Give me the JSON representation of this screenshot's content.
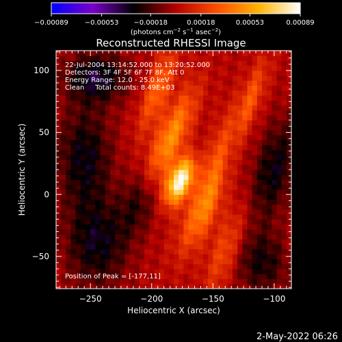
{
  "chart_data": {
    "type": "heatmap",
    "title": "Reconstructed RHESSI Image",
    "xlabel": "Heliocentric X (arcsec)",
    "ylabel": "Heliocentric Y (arcsec)",
    "xlim": [
      -278,
      -86
    ],
    "ylim": [
      -76,
      116
    ],
    "xticks": [
      -250,
      -200,
      -150,
      -100
    ],
    "yticks": [
      -50,
      0,
      50,
      100
    ],
    "colorbar": {
      "label_prefix": "(photons cm",
      "label_exp1": "−2",
      "label_mid": " s",
      "label_exp2": "−1",
      "label_mid2": " asec",
      "label_exp3": "−2",
      "label_suffix": ")",
      "range": [
        -0.00089,
        0.00089
      ],
      "ticks": [
        "-0.00089",
        "-0.00053",
        "-0.00018",
        "0.00018",
        "0.00053",
        "0.00089"
      ],
      "colormap": [
        "#0000ff",
        "#7a00c8",
        "#000000",
        "#b40000",
        "#ff5000",
        "#ffb400",
        "#ffffff"
      ]
    },
    "annotations": [
      "22-Jul-2004 13:14:52.000 to 13:20:52.000",
      "Detectors: 3F 4F 5F 6F 7F 8F, Att 0",
      "Energy Range: 12.0 - 25.0 keV",
      "Clean     Total counts: 8.49E+03"
    ],
    "peak_label": "Position of Peak = [-177,11]",
    "peak": [
      -177,
      11
    ],
    "sources": [
      {
        "x": -177,
        "y": 11,
        "sx": 7,
        "sy": 14,
        "angle": 25,
        "amp": 1.0
      },
      {
        "x": -185,
        "y": 45,
        "sx": 8,
        "sy": 30,
        "angle": 25,
        "amp": 0.55
      },
      {
        "x": -195,
        "y": 85,
        "sx": 7,
        "sy": 25,
        "angle": 20,
        "amp": 0.4
      },
      {
        "x": -160,
        "y": -15,
        "sx": 9,
        "sy": 25,
        "angle": 25,
        "amp": 0.4
      },
      {
        "x": -140,
        "y": -45,
        "sx": 8,
        "sy": 25,
        "angle": 20,
        "amp": 0.3
      },
      {
        "x": -120,
        "y": 75,
        "sx": 6,
        "sy": 25,
        "angle": 20,
        "amp": 0.35
      },
      {
        "x": -148,
        "y": 25,
        "sx": 6,
        "sy": 30,
        "angle": 15,
        "amp": 0.3
      },
      {
        "x": -245,
        "y": 95,
        "sx": 18,
        "sy": 14,
        "angle": 0,
        "amp": -0.4
      },
      {
        "x": -255,
        "y": 30,
        "sx": 16,
        "sy": 30,
        "angle": 0,
        "amp": -0.35
      },
      {
        "x": -245,
        "y": -40,
        "sx": 18,
        "sy": 25,
        "angle": 0,
        "amp": -0.35
      },
      {
        "x": -210,
        "y": -5,
        "sx": 10,
        "sy": 20,
        "angle": 20,
        "amp": -0.3
      },
      {
        "x": -100,
        "y": 20,
        "sx": 12,
        "sy": 30,
        "angle": 15,
        "amp": -0.35
      },
      {
        "x": -110,
        "y": -55,
        "sx": 15,
        "sy": 18,
        "angle": 0,
        "amp": -0.3
      }
    ]
  },
  "footer": {
    "timestamp": "2-May-2022 06:26"
  }
}
